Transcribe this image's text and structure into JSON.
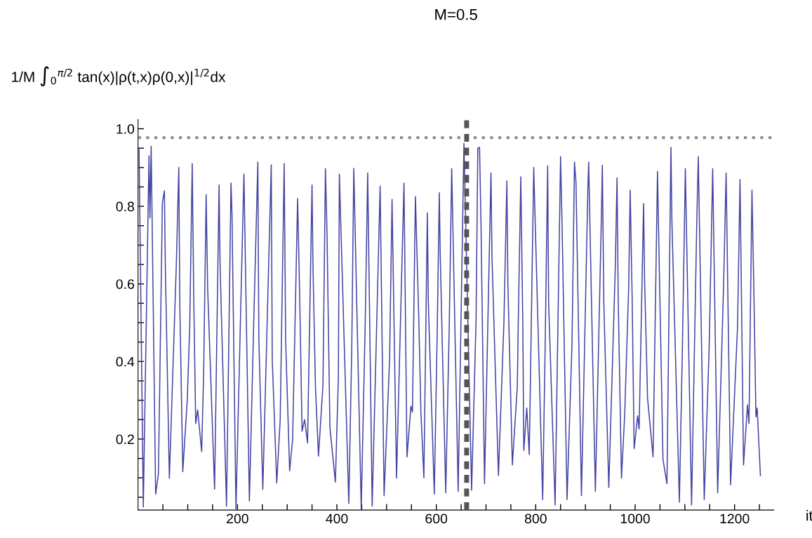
{
  "chart_data": {
    "type": "line",
    "title": "M=0.5",
    "xlabel": "it",
    "ylabel": "1/M ∫$_{0}$$^{π/2}$ tan(x)|ρ(t,x)ρ(0,x)|$^{1/2}$dx",
    "xlim": [
      0,
      1279
    ],
    "ylim": [
      0.017,
      1.024
    ],
    "xticks": [
      {
        "value": 50,
        "label": null
      },
      {
        "value": 100,
        "label": null
      },
      {
        "value": 150,
        "label": null
      },
      200,
      {
        "value": 250,
        "label": null
      },
      {
        "value": 300,
        "label": null
      },
      {
        "value": 350,
        "label": null
      },
      400,
      {
        "value": 450,
        "label": null
      },
      {
        "value": 500,
        "label": null
      },
      {
        "value": 550,
        "label": null
      },
      600,
      {
        "value": 650,
        "label": null
      },
      {
        "value": 700,
        "label": null
      },
      {
        "value": 750,
        "label": null
      },
      800,
      {
        "value": 850,
        "label": null
      },
      {
        "value": 900,
        "label": null
      },
      {
        "value": 950,
        "label": null
      },
      1000,
      {
        "value": 1050,
        "label": null
      },
      {
        "value": 1100,
        "label": null
      },
      {
        "value": 1150,
        "label": null
      },
      1200,
      {
        "value": 1250,
        "label": null
      }
    ],
    "yticks": [
      {
        "value": 0.05,
        "label": null
      },
      {
        "value": 0.1,
        "label": null
      },
      {
        "value": 0.15,
        "label": null
      },
      {
        "value": 0.2,
        "label": "0.2"
      },
      {
        "value": 0.25,
        "label": null
      },
      {
        "value": 0.3,
        "label": null
      },
      {
        "value": 0.35,
        "label": null
      },
      {
        "value": 0.4,
        "label": "0.4"
      },
      {
        "value": 0.45,
        "label": null
      },
      {
        "value": 0.5,
        "label": null
      },
      {
        "value": 0.55,
        "label": null
      },
      {
        "value": 0.6,
        "label": "0.6"
      },
      {
        "value": 0.65,
        "label": null
      },
      {
        "value": 0.7,
        "label": null
      },
      {
        "value": 0.75,
        "label": null
      },
      {
        "value": 0.8,
        "label": "0.8"
      },
      {
        "value": 0.85,
        "label": null
      },
      {
        "value": 0.9,
        "label": null
      },
      {
        "value": 0.95,
        "label": null
      },
      {
        "value": 1.0,
        "label": "1.0"
      }
    ],
    "ref_lines": [
      {
        "axis": "y",
        "value": 0.977,
        "color": "#8a8a8a",
        "line_style": "dotted"
      },
      {
        "axis": "x",
        "value": 661,
        "color": "#555555",
        "line_style": "dashed"
      }
    ],
    "x": [
      2,
      10.6,
      22,
      24,
      26.4,
      30,
      35.4,
      41,
      49,
      53,
      55,
      63,
      77,
      82,
      84,
      90,
      99,
      104,
      109,
      112,
      116,
      120,
      128,
      132,
      137,
      140,
      154,
      163,
      165,
      178,
      187,
      189,
      197,
      213,
      224,
      233,
      241,
      243,
      251,
      268,
      270,
      279,
      286,
      294,
      297,
      305,
      311,
      321,
      325,
      330,
      335,
      341,
      350,
      352,
      357,
      363,
      372,
      377,
      380,
      386,
      397,
      403,
      405,
      424,
      430,
      434,
      449,
      457,
      462,
      471,
      487,
      495,
      506,
      511,
      520,
      535,
      541,
      549,
      552,
      558,
      565,
      569,
      575,
      582,
      584,
      596,
      602,
      606,
      608,
      619,
      626,
      631,
      644,
      655.6,
      671,
      680,
      683.5,
      687,
      690,
      697,
      710,
      712,
      725,
      736,
      742,
      744,
      753,
      763,
      765,
      770,
      774,
      776,
      782,
      787,
      796,
      814,
      819,
      824,
      826,
      839,
      850,
      853,
      863,
      873,
      878,
      881,
      892,
      905,
      906.5,
      920,
      932,
      934,
      937,
      947,
      960,
      963.6,
      966,
      972.5,
      979,
      987,
      990,
      994,
      998,
      1005,
      1008,
      1017,
      1019,
      1025,
      1036,
      1045,
      1048,
      1056,
      1064,
      1072,
      1074,
      1089,
      1095,
      1101,
      1113.5,
      1124,
      1127,
      1139,
      1149,
      1156,
      1166,
      1178,
      1183,
      1192,
      1206,
      1211,
      1218,
      1226,
      1229,
      1235,
      1239,
      1243,
      1245.5,
      1252
    ],
    "series": [
      {
        "color": "#4343a3",
        "values": [
          0.95,
          0.025,
          0.93,
          0.77,
          0.955,
          0.6,
          0.058,
          0.11,
          0.81,
          0.84,
          0.64,
          0.099,
          0.65,
          0.9,
          0.55,
          0.116,
          0.3,
          0.49,
          0.91,
          0.57,
          0.24,
          0.275,
          0.168,
          0.37,
          0.83,
          0.59,
          0.071,
          0.855,
          0.65,
          0.027,
          0.86,
          0.78,
          0.02,
          0.883,
          0.04,
          0.515,
          0.914,
          0.46,
          0.07,
          0.907,
          0.405,
          0.087,
          0.25,
          0.91,
          0.45,
          0.118,
          0.2,
          0.82,
          0.58,
          0.22,
          0.25,
          0.19,
          0.855,
          0.64,
          0.33,
          0.156,
          0.34,
          0.897,
          0.74,
          0.23,
          0.089,
          0.36,
          0.883,
          0.034,
          0.44,
          0.898,
          0.02,
          0.5,
          0.886,
          0.027,
          0.852,
          0.054,
          0.405,
          0.818,
          0.099,
          0.86,
          0.154,
          0.285,
          0.27,
          0.825,
          0.5,
          0.27,
          0.1,
          0.783,
          0.55,
          0.058,
          0.49,
          0.835,
          0.67,
          0.061,
          0.49,
          0.897,
          0.065,
          0.962,
          0.068,
          0.508,
          0.95,
          0.952,
          0.75,
          0.085,
          0.886,
          0.67,
          0.106,
          0.5,
          0.866,
          0.6,
          0.133,
          0.336,
          0.508,
          0.876,
          0.5,
          0.171,
          0.28,
          0.16,
          0.9,
          0.044,
          0.44,
          0.904,
          0.55,
          0.03,
          0.928,
          0.756,
          0.044,
          0.446,
          0.914,
          0.862,
          0.054,
          0.85,
          0.914,
          0.065,
          0.766,
          0.906,
          0.55,
          0.075,
          0.64,
          0.873,
          0.556,
          0.099,
          0.264,
          0.59,
          0.842,
          0.563,
          0.175,
          0.26,
          0.226,
          0.807,
          0.61,
          0.305,
          0.154,
          0.89,
          0.68,
          0.147,
          0.085,
          0.952,
          0.76,
          0.037,
          0.43,
          0.897,
          0.03,
          0.76,
          0.928,
          0.044,
          0.44,
          0.897,
          0.061,
          0.6,
          0.886,
          0.082,
          0.49,
          0.869,
          0.133,
          0.288,
          0.24,
          0.842,
          0.57,
          0.257,
          0.28,
          0.106
        ]
      }
    ]
  }
}
